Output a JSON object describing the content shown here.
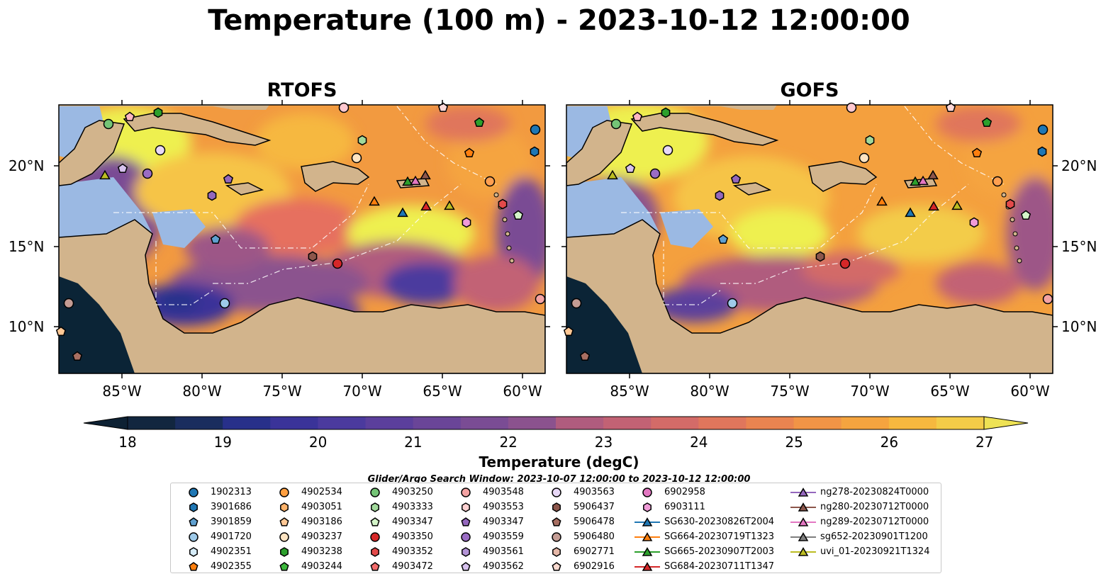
{
  "title": "Temperature (100 m) - 2023-10-12 12:00:00",
  "panels": [
    {
      "title": "RTOFS"
    },
    {
      "title": "GOFS"
    }
  ],
  "lat_labels": [
    "20°N",
    "15°N",
    "10°N"
  ],
  "lon_labels": [
    "85°W",
    "80°W",
    "75°W",
    "70°W",
    "65°W",
    "60°W"
  ],
  "colorbar": {
    "label": "Temperature (degC)",
    "ticks": [
      "18",
      "19",
      "20",
      "21",
      "22",
      "23",
      "24",
      "25",
      "26",
      "27"
    ],
    "colors": [
      "#0d2133",
      "#12263f",
      "#1a2d5e",
      "#28308a",
      "#3a3399",
      "#4b3a9e",
      "#5b3f9c",
      "#6a4598",
      "#7a4c94",
      "#8b528e",
      "#9d5787",
      "#b05c7e",
      "#c26274",
      "#d36b68",
      "#e0765c",
      "#ea8450",
      "#f19446",
      "#f5a43f",
      "#f6b83f",
      "#f3cc48",
      "#eee254"
    ]
  },
  "search_window": "Glider/Argo Search Window: 2023-10-07 12:00:00 to 2023-10-12 12:00:00",
  "legend": [
    {
      "label": "1902313",
      "marker": "circle",
      "color": "#1f77b4"
    },
    {
      "label": "3901686",
      "marker": "hexagon",
      "color": "#1f77b4"
    },
    {
      "label": "3901859",
      "marker": "pentagon",
      "color": "#5fa0d0"
    },
    {
      "label": "4901720",
      "marker": "circle",
      "color": "#9ecae9"
    },
    {
      "label": "4902351",
      "marker": "hexagon",
      "color": "#d6ecf8"
    },
    {
      "label": "4902355",
      "marker": "pentagon",
      "color": "#ff7f0e"
    },
    {
      "label": "4902534",
      "marker": "circle",
      "color": "#ff9f40"
    },
    {
      "label": "4903051",
      "marker": "hexagon",
      "color": "#ffb36b"
    },
    {
      "label": "4903186",
      "marker": "pentagon",
      "color": "#ffc895"
    },
    {
      "label": "4903237",
      "marker": "circle",
      "color": "#ffe4c2"
    },
    {
      "label": "4903238",
      "marker": "hexagon",
      "color": "#2ca02c"
    },
    {
      "label": "4903244",
      "marker": "pentagon",
      "color": "#3cb83c"
    },
    {
      "label": "4903250",
      "marker": "circle",
      "color": "#74c476"
    },
    {
      "label": "4903333",
      "marker": "hexagon",
      "color": "#a1d99b"
    },
    {
      "label": "4903347",
      "marker": "pentagon",
      "color": "#d4f5c9"
    },
    {
      "label": "4903350",
      "marker": "circle",
      "color": "#d62728"
    },
    {
      "label": "4903352",
      "marker": "hexagon",
      "color": "#e34a4a"
    },
    {
      "label": "4903472",
      "marker": "pentagon",
      "color": "#f26b6b"
    },
    {
      "label": "4903548",
      "marker": "circle",
      "color": "#f4a3a3"
    },
    {
      "label": "4903553",
      "marker": "hexagon",
      "color": "#fcd0d0"
    },
    {
      "label": "4903347",
      "marker": "pentagon",
      "color": "#9467bd"
    },
    {
      "label": "4903559",
      "marker": "circle",
      "color": "#9a6cc4"
    },
    {
      "label": "4903561",
      "marker": "hexagon",
      "color": "#b393d6"
    },
    {
      "label": "4903562",
      "marker": "pentagon",
      "color": "#d7c2ee"
    },
    {
      "label": "4903563",
      "marker": "circle",
      "color": "#e8d8f7"
    },
    {
      "label": "5906437",
      "marker": "hexagon",
      "color": "#8c564b"
    },
    {
      "label": "5906478",
      "marker": "pentagon",
      "color": "#a86f62"
    },
    {
      "label": "5906480",
      "marker": "circle",
      "color": "#c49c94"
    },
    {
      "label": "6902771",
      "marker": "hexagon",
      "color": "#e6b8a8"
    },
    {
      "label": "6902916",
      "marker": "pentagon",
      "color": "#f8d9cf"
    },
    {
      "label": "6902958",
      "marker": "circle",
      "color": "#e377c2"
    },
    {
      "label": "6903111",
      "marker": "hexagon",
      "color": "#f09bd8"
    },
    {
      "label": "SG630-20230826T2004",
      "marker": "triangle-line",
      "color": "#1f77b4"
    },
    {
      "label": "SG664-20230719T1323",
      "marker": "triangle-line",
      "color": "#ff7f0e"
    },
    {
      "label": "SG665-20230907T2003",
      "marker": "triangle-line",
      "color": "#2ca02c"
    },
    {
      "label": "SG684-20230711T1347",
      "marker": "triangle-line",
      "color": "#d62728"
    },
    {
      "label": "ng278-20230824T0000",
      "marker": "triangle-line",
      "color": "#9467bd"
    },
    {
      "label": "ng280-20230712T0000",
      "marker": "triangle-line",
      "color": "#8c564b"
    },
    {
      "label": "ng289-20230712T0000",
      "marker": "triangle-line",
      "color": "#e377c2"
    },
    {
      "label": "sg652-20230901T1200",
      "marker": "triangle-line",
      "color": "#7f7f7f"
    },
    {
      "label": "uvi_01-20230921T1324",
      "marker": "triangle-line",
      "color": "#bcbd22"
    }
  ],
  "colors": {
    "land": "#d2b48c",
    "shallow": "#9bb9e3",
    "deep_bg": "#0b2436",
    "warm": "#f3a03e",
    "hot": "#eef050",
    "cool": "#4b3a9e"
  }
}
